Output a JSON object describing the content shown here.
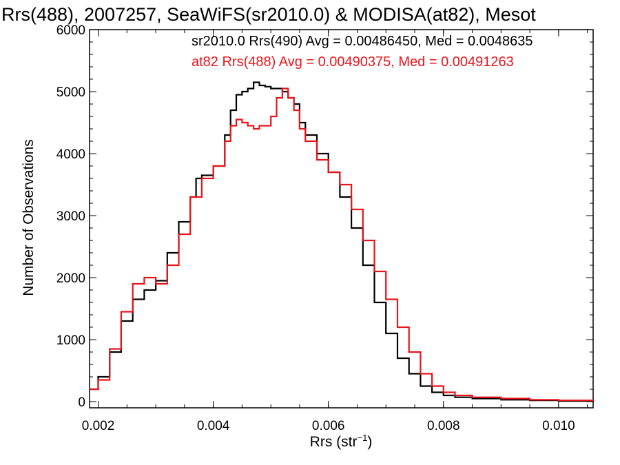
{
  "chart_data": {
    "type": "line",
    "title": "Rrs(488), 2007257, SeaWiFS(sr2010.0) & MODISA(at82), Mesot",
    "xlabel": "Rrs (str",
    "xlabel_sup": "−1",
    "xlabel_close": ")",
    "ylabel": "Number of Observations",
    "xlim": [
      0.00185,
      0.0106
    ],
    "ylim": [
      -100,
      6000
    ],
    "xticks": [
      {
        "value": 0.002,
        "label": "0.002"
      },
      {
        "value": 0.004,
        "label": "0.004"
      },
      {
        "value": 0.006,
        "label": "0.006"
      },
      {
        "value": 0.008,
        "label": "0.008"
      },
      {
        "value": 0.01,
        "label": "0.010"
      }
    ],
    "yticks": [
      {
        "value": 0,
        "label": "0"
      },
      {
        "value": 1000,
        "label": "1000"
      },
      {
        "value": 2000,
        "label": "2000"
      },
      {
        "value": 3000,
        "label": "3000"
      },
      {
        "value": 4000,
        "label": "4000"
      },
      {
        "value": 5000,
        "label": "5000"
      },
      {
        "value": 6000,
        "label": "6000"
      }
    ],
    "legend_placement": "top-right",
    "series": [
      {
        "name": "sr2010.0 Rrs(490) Avg = 0.00486450, Med = 0.0048635",
        "color": "#000000",
        "x": [
          0.00185,
          0.002,
          0.0022,
          0.0024,
          0.0026,
          0.0028,
          0.003,
          0.0032,
          0.0034,
          0.0036,
          0.0037,
          0.0038,
          0.004,
          0.0042,
          0.0043,
          0.0044,
          0.0045,
          0.0046,
          0.0047,
          0.0048,
          0.0049,
          0.005,
          0.0051,
          0.0052,
          0.0053,
          0.0054,
          0.0055,
          0.0056,
          0.0058,
          0.006,
          0.0062,
          0.0064,
          0.0066,
          0.0068,
          0.007,
          0.0072,
          0.0074,
          0.0076,
          0.0078,
          0.008,
          0.0082,
          0.0085,
          0.009,
          0.0095,
          0.01,
          0.0106
        ],
        "y": [
          200,
          400,
          800,
          1300,
          1650,
          1800,
          1950,
          2400,
          2900,
          3300,
          3600,
          3650,
          3800,
          4300,
          4700,
          4950,
          5000,
          5050,
          5150,
          5100,
          5080,
          5050,
          5050,
          5000,
          4900,
          4800,
          4500,
          4300,
          4000,
          3700,
          3300,
          2800,
          2200,
          1600,
          1100,
          700,
          450,
          250,
          150,
          100,
          70,
          50,
          30,
          20,
          10,
          5
        ]
      },
      {
        "name": "at82 Rrs(488) Avg = 0.00490375, Med = 0.00491263",
        "color": "#e8141b",
        "x": [
          0.00185,
          0.002,
          0.0022,
          0.0024,
          0.0026,
          0.0028,
          0.003,
          0.0032,
          0.0034,
          0.0036,
          0.0038,
          0.004,
          0.0042,
          0.0043,
          0.0044,
          0.0045,
          0.0046,
          0.0047,
          0.0048,
          0.0049,
          0.005,
          0.0051,
          0.0052,
          0.0053,
          0.0054,
          0.0055,
          0.0056,
          0.0058,
          0.006,
          0.0062,
          0.0064,
          0.0066,
          0.0068,
          0.007,
          0.0072,
          0.0074,
          0.0076,
          0.0078,
          0.008,
          0.0082,
          0.0085,
          0.009,
          0.0095,
          0.01,
          0.0106
        ],
        "y": [
          200,
          350,
          850,
          1450,
          1900,
          2000,
          1900,
          2200,
          2700,
          3300,
          3600,
          3800,
          4200,
          4450,
          4550,
          4500,
          4450,
          4400,
          4450,
          4450,
          4600,
          4900,
          5050,
          4900,
          4700,
          4400,
          4200,
          3900,
          3700,
          3500,
          3100,
          2600,
          2100,
          1650,
          1200,
          800,
          450,
          250,
          150,
          100,
          70,
          50,
          30,
          20,
          10
        ]
      }
    ]
  }
}
